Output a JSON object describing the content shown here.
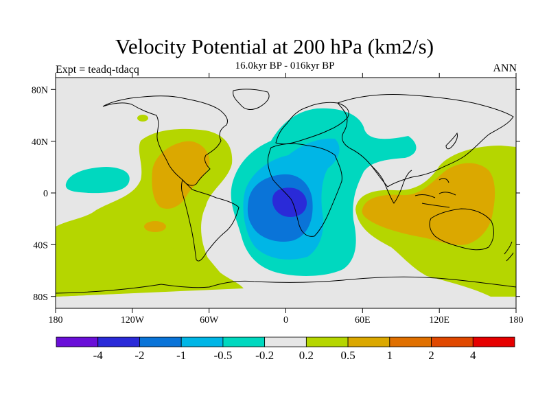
{
  "header": {
    "title": "Velocity Potential at 200 hPa (km2/s)",
    "subtitle": "16.0kyr BP - 016kyr BP",
    "left_label": "Expt = teadq-tdacq",
    "right_label": "ANN"
  },
  "axes": {
    "lat_ticks": [
      "80N",
      "40N",
      "0",
      "40S",
      "80S"
    ],
    "lon_ticks": [
      "180",
      "120W",
      "60W",
      "0",
      "60E",
      "120E",
      "180"
    ]
  },
  "colorbar": {
    "colors": [
      "#6a0fd8",
      "#2a2ad8",
      "#0a74d8",
      "#00b6e6",
      "#00d8bf",
      "#e6e6e6",
      "#b5d600",
      "#dba800",
      "#e07000",
      "#e04800",
      "#e60000"
    ],
    "labels": [
      "-4",
      "-2",
      "-1",
      "-0.5",
      "-0.2",
      "0.2",
      "0.5",
      "1",
      "2",
      "4"
    ]
  },
  "field": {
    "background": "#e6e6e6",
    "neutral_band": [
      -0.2,
      0.2
    ],
    "regions": [
      {
        "name": "Atlantic-Africa low",
        "level_range": [
          -0.5,
          -0.2
        ]
      },
      {
        "name": "Atlantic-Africa low core",
        "level_range": [
          -1,
          -0.5
        ]
      },
      {
        "name": "Atlantic-Africa low center",
        "level_range": [
          -2,
          -1
        ]
      },
      {
        "name": "Atlantic-Africa low minimum",
        "level_range": [
          -4,
          -2
        ]
      },
      {
        "name": "Pacific high",
        "level_range": [
          0.2,
          0.5
        ]
      },
      {
        "name": "Americas high",
        "level_range": [
          0.5,
          1
        ]
      },
      {
        "name": "Indo-Pacific high",
        "level_range": [
          0.2,
          0.5
        ]
      },
      {
        "name": "Maritime Continent high",
        "level_range": [
          0.5,
          1
        ]
      }
    ]
  }
}
